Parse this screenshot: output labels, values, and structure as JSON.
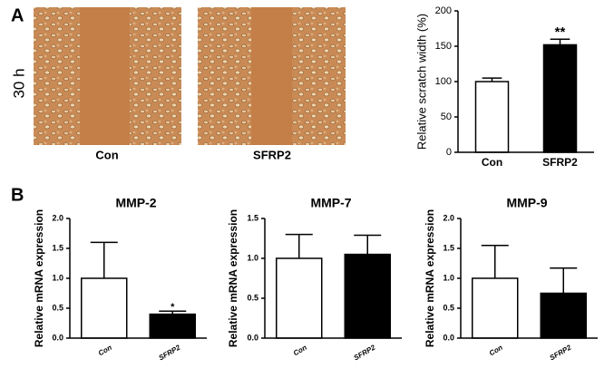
{
  "labels": {
    "panel_a": "A",
    "panel_b": "B",
    "time": "30 h",
    "images": [
      "Con",
      "SFRP2"
    ]
  },
  "chart_data": [
    {
      "type": "bar",
      "ylabel": "Relative scratch width (%)",
      "categories": [
        "Con",
        "SFRP2"
      ],
      "values": [
        100,
        152
      ],
      "errors": [
        5,
        8
      ],
      "colors": [
        "#ffffff",
        "#000000"
      ],
      "ylim": [
        0,
        200
      ],
      "yticks": [
        0,
        50,
        100,
        150,
        200
      ],
      "annotations": [
        {
          "text": "**",
          "category": "SFRP2"
        }
      ]
    },
    {
      "type": "bar",
      "title": "MMP-2",
      "ylabel": "Relative mRNA expression",
      "categories": [
        "Con",
        "SFRP2"
      ],
      "values": [
        1.0,
        0.4
      ],
      "errors": [
        0.6,
        0.05
      ],
      "colors": [
        "#ffffff",
        "#000000"
      ],
      "ylim": [
        0,
        2.0
      ],
      "yticks": [
        {
          "value": 0,
          "label": "0.0"
        },
        0.5,
        {
          "value": 1,
          "label": "1.0"
        },
        1.5,
        {
          "value": 2,
          "label": "2.0"
        }
      ],
      "annotations": [
        {
          "text": "*",
          "category": "SFRP2"
        }
      ]
    },
    {
      "type": "bar",
      "title": "MMP-7",
      "ylabel": "Relative mRNA expression",
      "categories": [
        "Con",
        "SFRP2"
      ],
      "values": [
        1.0,
        1.05
      ],
      "errors": [
        0.3,
        0.24
      ],
      "colors": [
        "#ffffff",
        "#000000"
      ],
      "ylim": [
        0,
        1.5
      ],
      "yticks": [
        {
          "value": 0,
          "label": "0.0"
        },
        0.5,
        {
          "value": 1,
          "label": "1.0"
        },
        1.5
      ]
    },
    {
      "type": "bar",
      "title": "MMP-9",
      "ylabel": "Relative mRNA expression",
      "categories": [
        "Con",
        "SFRP2"
      ],
      "values": [
        1.0,
        0.75
      ],
      "errors": [
        0.55,
        0.42
      ],
      "colors": [
        "#ffffff",
        "#000000"
      ],
      "ylim": [
        0,
        2.0
      ],
      "yticks": [
        {
          "value": 0,
          "label": "0.0"
        },
        0.5,
        {
          "value": 1,
          "label": "1.0"
        },
        1.5,
        {
          "value": 2,
          "label": "2.0"
        }
      ]
    }
  ]
}
